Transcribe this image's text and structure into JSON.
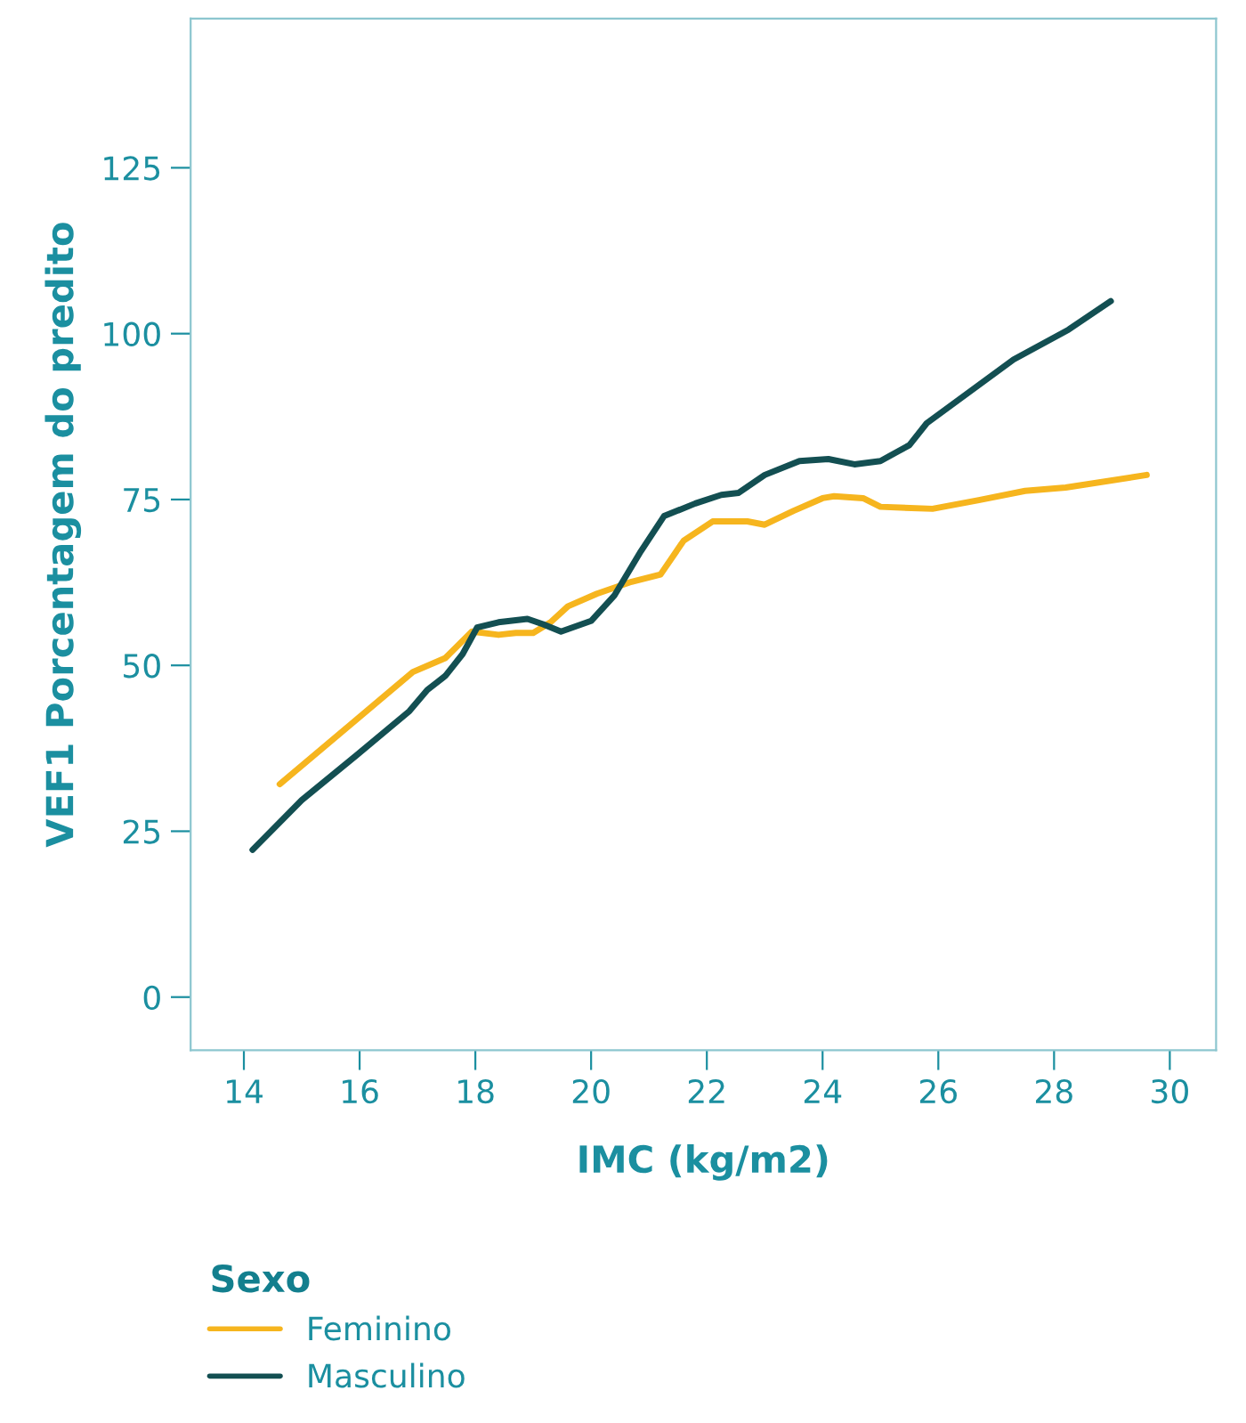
{
  "chart_data": {
    "type": "line",
    "xlabel": "IMC (kg/m2)",
    "ylabel": "VEF1 Porcentagem do predito",
    "legend_title": "Sexo",
    "legend": "bottom left",
    "grid": false,
    "marker": "none",
    "line_style": "solid",
    "xlim": [
      13.08,
      30.8
    ],
    "ylim": [
      -8,
      147.5
    ],
    "xticks": [
      14,
      16,
      18,
      20,
      22,
      24,
      26,
      28,
      30
    ],
    "yticks": [
      0,
      25,
      50,
      75,
      100,
      125
    ],
    "series": [
      {
        "name": "Feminino",
        "color": "#f6b51e",
        "x": [
          14.62,
          15.94,
          16.92,
          17.48,
          17.94,
          18.4,
          18.7,
          19.0,
          19.3,
          19.6,
          20.1,
          20.7,
          21.2,
          21.6,
          22.1,
          22.7,
          23.0,
          23.5,
          24.0,
          24.2,
          24.7,
          25.0,
          25.9,
          26.7,
          27.5,
          28.2,
          29.6
        ],
        "values": [
          32.1,
          41.8,
          49,
          51.1,
          55.1,
          54.6,
          54.9,
          54.9,
          56.5,
          58.9,
          60.8,
          62.6,
          63.7,
          68.8,
          71.7,
          71.7,
          71.2,
          73.3,
          75.2,
          75.5,
          75.2,
          73.9,
          73.6,
          74.9,
          76.3,
          76.8,
          78.7
        ]
      },
      {
        "name": "Masculino",
        "color": "#134f52",
        "x": [
          14.15,
          15.0,
          15.94,
          16.86,
          17.17,
          17.48,
          17.78,
          18.03,
          18.4,
          18.9,
          19.17,
          19.48,
          20.0,
          20.4,
          20.86,
          21.26,
          21.8,
          22.25,
          22.55,
          23.0,
          23.6,
          24.1,
          24.55,
          25.0,
          25.5,
          25.8,
          26.55,
          27.3,
          28.25,
          28.98
        ],
        "values": [
          22.2,
          29.7,
          36.4,
          43.1,
          46.3,
          48.4,
          51.7,
          55.7,
          56.5,
          57.0,
          56.2,
          55.1,
          56.7,
          60.5,
          67.2,
          72.5,
          74.4,
          75.7,
          76.0,
          78.7,
          80.8,
          81.1,
          80.3,
          80.8,
          83.2,
          86.5,
          91.3,
          96.1,
          100.6,
          104.9
        ]
      }
    ]
  }
}
